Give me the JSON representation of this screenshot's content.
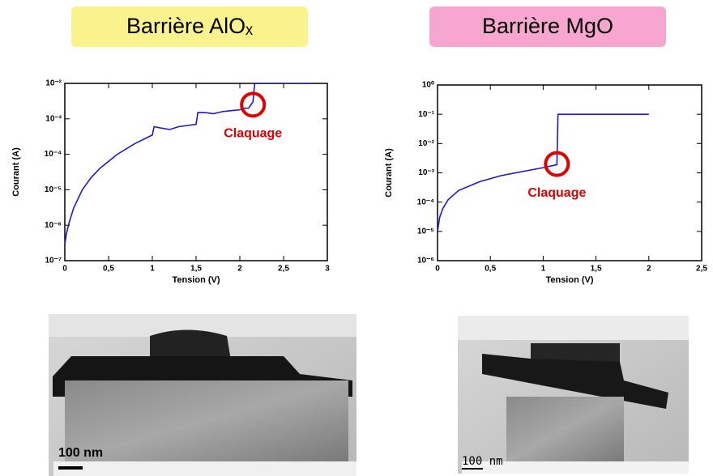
{
  "chart_data": [
    {
      "type": "line",
      "title": "Barrière AlOₓ",
      "title_bg": "#faf28c",
      "x_label": "Tension (V)",
      "y_label": "Courant (A)",
      "log_y": true,
      "color": "#1a1ac8",
      "x": [
        0,
        0.02,
        0.05,
        0.1,
        0.2,
        0.3,
        0.4,
        0.6,
        0.8,
        1.0,
        1.02,
        1.1,
        1.2,
        1.3,
        1.4,
        1.5,
        1.52,
        1.6,
        1.7,
        1.8,
        1.9,
        2.0,
        2.05,
        2.1,
        2.15,
        2.17,
        2.3,
        2.5,
        2.8
      ],
      "values": [
        3e-07,
        6e-07,
        1.2e-06,
        3e-06,
        1e-05,
        2.2e-05,
        4e-05,
        0.0001,
        0.0002,
        0.00035,
        0.0006,
        0.00055,
        0.0005,
        0.0006,
        0.00065,
        0.0007,
        0.0015,
        0.0015,
        0.0014,
        0.0016,
        0.0017,
        0.0018,
        0.002,
        0.002,
        0.003,
        0.01,
        0.01,
        0.01,
        0.01
      ],
      "xlim": [
        0,
        3
      ],
      "xticks": [
        0,
        {
          "value": 0.5,
          "label": "0,5"
        },
        1,
        {
          "value": 1.5,
          "label": "1,5"
        },
        2,
        {
          "value": 2.5,
          "label": "2,5"
        },
        3
      ],
      "ylim": [
        1e-07,
        0.01
      ],
      "yticks": [
        {
          "value": 1e-07,
          "label": "10⁻⁷"
        },
        {
          "value": 1e-06,
          "label": "10⁻⁶"
        },
        {
          "value": 1e-05,
          "label": "10⁻⁵"
        },
        {
          "value": 0.0001,
          "label": "10⁻⁴"
        },
        {
          "value": 0.001,
          "label": "10⁻³"
        },
        {
          "value": 0.01,
          "label": "10⁻²"
        }
      ],
      "annotation": {
        "text": "Claquage",
        "x": 2.15,
        "y": 0.0025
      }
    },
    {
      "type": "line",
      "title": "Barrière MgO",
      "title_bg": "#f7a6d0",
      "x_label": "Tension (V)",
      "y_label": "Courant (A)",
      "log_y": true,
      "color": "#1a1ac8",
      "x": [
        0,
        0.02,
        0.05,
        0.1,
        0.2,
        0.4,
        0.6,
        0.8,
        1.0,
        1.13,
        1.14,
        1.5,
        2.0
      ],
      "values": [
        1e-05,
        3e-05,
        6e-05,
        0.00012,
        0.00025,
        0.0005,
        0.0008,
        0.0011,
        0.0015,
        0.0019,
        0.1,
        0.1,
        0.1
      ],
      "xlim": [
        0,
        2.5
      ],
      "xticks": [
        0,
        {
          "value": 0.5,
          "label": "0,5"
        },
        1,
        {
          "value": 1.5,
          "label": "1,5"
        },
        2,
        {
          "value": 2.5,
          "label": "2,5"
        }
      ],
      "ylim": [
        1e-06,
        1
      ],
      "yticks": [
        {
          "value": 1e-06,
          "label": "10⁻⁶"
        },
        {
          "value": 1e-05,
          "label": "10⁻⁵"
        },
        {
          "value": 0.0001,
          "label": "10⁻⁴"
        },
        {
          "value": 0.001,
          "label": "10⁻³"
        },
        {
          "value": 0.01,
          "label": "10⁻²"
        },
        {
          "value": 0.1,
          "label": "10⁻¹"
        },
        {
          "value": 1,
          "label": "10⁰"
        }
      ],
      "annotation": {
        "text": "Claquage",
        "x": 1.13,
        "y": 0.002
      }
    }
  ],
  "images": [
    {
      "scale_label": "100 nm"
    },
    {
      "scale_label": "100 nm"
    }
  ]
}
